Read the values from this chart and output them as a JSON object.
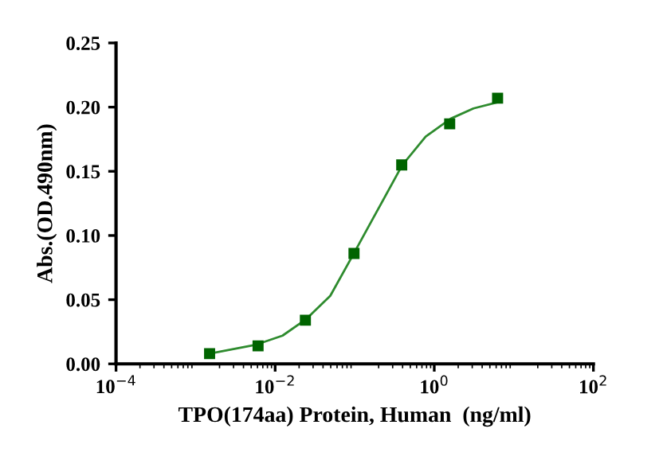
{
  "chart_data": {
    "type": "scatter",
    "xlabel": "TPO(174aa) Protein, Human  (ng/ml)",
    "ylabel": "Abs.(OD.490nm)",
    "log": "x",
    "marker": "square",
    "grid": false,
    "xlim": [
      0.0001,
      100
    ],
    "xticks": [
      {
        "value": 0.0001,
        "label": "10$^{−4}$"
      },
      {
        "value": 0.01,
        "label": "10$^{−2}$"
      },
      {
        "value": 1,
        "label": "10$^{0}$"
      },
      {
        "value": 100,
        "label": "10$^{2}$"
      }
    ],
    "ylim": [
      0,
      0.25
    ],
    "yticks": [
      {
        "value": 0,
        "label": "0.00"
      },
      {
        "value": 0.05,
        "label": "0.05"
      },
      {
        "value": 0.1,
        "label": "0.10"
      },
      {
        "value": 0.15,
        "label": "0.15"
      },
      {
        "value": 0.2,
        "label": "0.20"
      },
      {
        "value": 0.25,
        "label": "0.25"
      }
    ],
    "series": [
      {
        "color": "#006400",
        "x": [
          0.0015,
          0.0061,
          0.024,
          0.098,
          0.39,
          1.5625,
          6.25
        ],
        "values": [
          0.008,
          0.014,
          0.034,
          0.086,
          0.155,
          0.187,
          0.207
        ]
      },
      {
        "type": "line",
        "color": "#2e8b2e",
        "marker": "none",
        "x": [
          0.0015,
          0.0058,
          0.0124,
          0.0247,
          0.0493,
          0.0955,
          0.169,
          0.398,
          0.78,
          1.61,
          3.11,
          6.41
        ],
        "values": [
          0.008,
          0.015,
          0.022,
          0.035,
          0.053,
          0.085,
          0.113,
          0.155,
          0.177,
          0.191,
          0.199,
          0.204
        ]
      }
    ]
  }
}
